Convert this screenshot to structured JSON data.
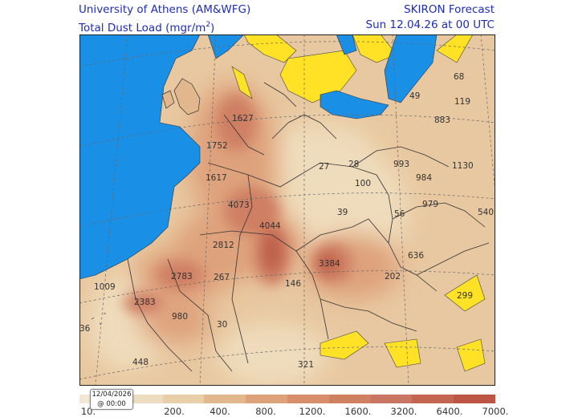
{
  "header": {
    "org": "University of Athens (AM&WFG)",
    "variable": "Total Dust Load (mgr/m",
    "variable_exp": "2",
    "variable_close": ")",
    "model": "SKIRON Forecast",
    "valid_time": "Sun 12.04.26 at 00 UTC"
  },
  "colors": {
    "sea": "#1a8fe6",
    "low": "#ffe126",
    "base": "#ebd2a8",
    "mid": "#dea27b",
    "high": "#cf8060",
    "peak": "#b85c48"
  },
  "values": [
    {
      "label": "1627"
    },
    {
      "label": "1752"
    },
    {
      "label": "1617"
    },
    {
      "label": "4073"
    },
    {
      "label": "4044"
    },
    {
      "label": "2812"
    },
    {
      "label": "2783"
    },
    {
      "label": "267"
    },
    {
      "label": "1009"
    },
    {
      "label": "2383"
    },
    {
      "label": "980"
    },
    {
      "label": "30"
    },
    {
      "label": "448"
    },
    {
      "label": "3384"
    },
    {
      "label": "146"
    },
    {
      "label": "202"
    },
    {
      "label": "321"
    },
    {
      "label": "27"
    },
    {
      "label": "28"
    },
    {
      "label": "100"
    },
    {
      "label": "39"
    },
    {
      "label": "56"
    },
    {
      "label": "636"
    },
    {
      "label": "299"
    },
    {
      "label": "993"
    },
    {
      "label": "984"
    },
    {
      "label": "979"
    },
    {
      "label": "1130"
    },
    {
      "label": "540"
    },
    {
      "label": "883"
    },
    {
      "label": "119"
    },
    {
      "label": "49"
    },
    {
      "label": "68"
    },
    {
      "label": "36"
    }
  ],
  "legend": {
    "colors": [
      "#f3e8d4",
      "#ecdcc0",
      "#e9cfa9",
      "#e3b78d",
      "#dea27b",
      "#d88e6b",
      "#cf8060",
      "#c97564",
      "#c46552",
      "#bc5544"
    ],
    "ticks": [
      "10.",
      "200.",
      "400.",
      "800.",
      "1200.",
      "1600.",
      "3200.",
      "6400.",
      "7000."
    ]
  },
  "timestamp": {
    "date": "12/04/2026",
    "time": "@ 00:00"
  }
}
